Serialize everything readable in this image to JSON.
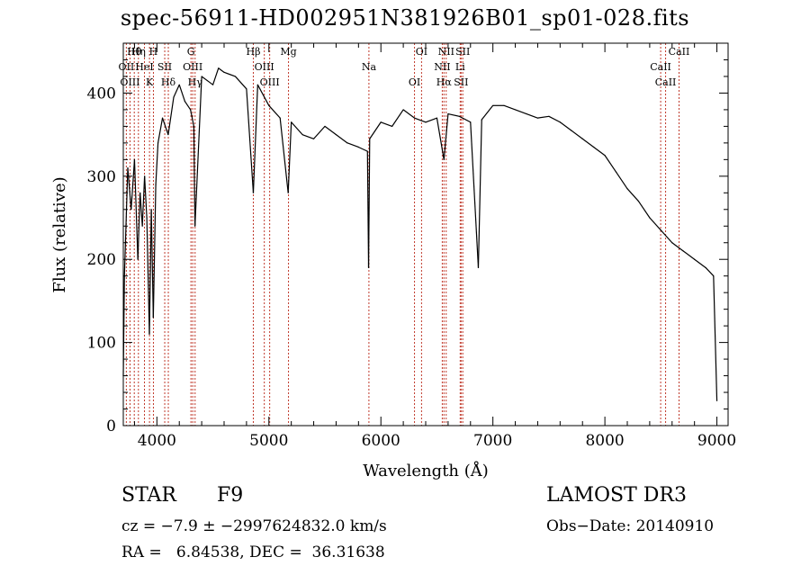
{
  "chart_data": {
    "type": "line",
    "title": "spec-56911-HD002951N381926B01_sp01-028.fits",
    "xlabel": "Wavelength (Å)",
    "ylabel": "Flux (relative)",
    "xlim": [
      3700,
      9100
    ],
    "ylim": [
      0,
      460
    ],
    "xticks": [
      4000,
      5000,
      6000,
      7000,
      8000,
      9000
    ],
    "xtick_labels": [
      "4000",
      "5000",
      "6000",
      "7000",
      "8000",
      "9000"
    ],
    "yticks": [
      0,
      100,
      200,
      300,
      400
    ],
    "ytick_labels": [
      "0",
      "100",
      "200",
      "300",
      "400"
    ],
    "series": [
      {
        "name": "spectrum",
        "x": [
          3700,
          3710,
          3740,
          3770,
          3800,
          3830,
          3850,
          3870,
          3890,
          3910,
          3933,
          3950,
          3968,
          3990,
          4010,
          4050,
          4101,
          4150,
          4200,
          4250,
          4300,
          4330,
          4340,
          4400,
          4450,
          4500,
          4550,
          4600,
          4700,
          4800,
          4861,
          4900,
          5000,
          5100,
          5172,
          5200,
          5300,
          5400,
          5500,
          5600,
          5700,
          5800,
          5880,
          5890,
          5900,
          6000,
          6100,
          6200,
          6300,
          6400,
          6500,
          6563,
          6600,
          6700,
          6800,
          6870,
          6900,
          7000,
          7100,
          7200,
          7300,
          7400,
          7500,
          7600,
          7700,
          7800,
          7900,
          8000,
          8100,
          8200,
          8300,
          8400,
          8500,
          8600,
          8700,
          8800,
          8900,
          8970,
          9000
        ],
        "y": [
          60,
          180,
          310,
          260,
          320,
          200,
          280,
          240,
          300,
          250,
          110,
          260,
          130,
          290,
          340,
          370,
          350,
          395,
          410,
          390,
          380,
          360,
          240,
          420,
          415,
          410,
          430,
          425,
          420,
          405,
          280,
          410,
          385,
          370,
          280,
          365,
          350,
          345,
          360,
          350,
          340,
          335,
          330,
          190,
          345,
          365,
          360,
          380,
          370,
          365,
          370,
          320,
          375,
          372,
          365,
          190,
          368,
          385,
          385,
          380,
          375,
          370,
          372,
          365,
          355,
          345,
          335,
          325,
          305,
          285,
          270,
          250,
          235,
          220,
          210,
          200,
          190,
          180,
          30
        ]
      }
    ],
    "lines": [
      {
        "label": "Hθ",
        "wave": 3798
      },
      {
        "label": "OII",
        "wave": 3727
      },
      {
        "label": "OIII",
        "wave": 3760
      },
      {
        "label": "Hη",
        "wave": 3835
      },
      {
        "label": "HeI",
        "wave": 3889
      },
      {
        "label": "K",
        "wave": 3934
      },
      {
        "label": "H",
        "wave": 3969
      },
      {
        "label": "SII",
        "wave": 4070
      },
      {
        "label": "Hδ",
        "wave": 4102
      },
      {
        "label": "G",
        "wave": 4304
      },
      {
        "label": "OIII",
        "wave": 4320
      },
      {
        "label": "Hγ",
        "wave": 4341
      },
      {
        "label": "Hβ",
        "wave": 4861
      },
      {
        "label": "OIII",
        "wave": 4959
      },
      {
        "label": "OIII",
        "wave": 5007
      },
      {
        "label": "Mg",
        "wave": 5175
      },
      {
        "label": "Na",
        "wave": 5893
      },
      {
        "label": "OI",
        "wave": 6300
      },
      {
        "label": "OI",
        "wave": 6363
      },
      {
        "label": "NII",
        "wave": 6548
      },
      {
        "label": "Hα",
        "wave": 6563
      },
      {
        "label": "NII",
        "wave": 6583
      },
      {
        "label": "Li",
        "wave": 6708
      },
      {
        "label": "SII",
        "wave": 6716
      },
      {
        "label": "SII",
        "wave": 6731
      },
      {
        "label": "CaII",
        "wave": 8498
      },
      {
        "label": "CaII",
        "wave": 8542
      },
      {
        "label": "CaII",
        "wave": 8662
      }
    ],
    "line_color": "#c0392b",
    "spectrum_color": "#000000"
  },
  "info": {
    "object_class": "STAR",
    "subclass": "F9",
    "survey": "LAMOST DR3",
    "cz": "cz = −7.9 ± −2997624832.0 km/s",
    "obs_date": "Obs−Date: 20140910",
    "radec": "RA =   6.84538, DEC =  36.31638"
  }
}
